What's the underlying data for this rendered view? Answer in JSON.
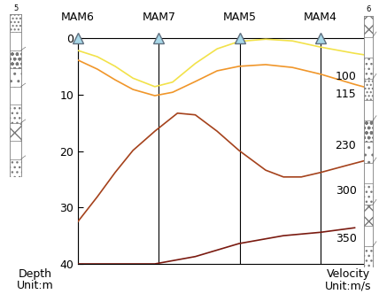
{
  "chart_data": {
    "type": "line",
    "xlim": [
      0,
      3.6
    ],
    "xticks": [
      {
        "value": 0,
        "label": "MAM6"
      },
      {
        "value": 1,
        "label": "MAM7"
      },
      {
        "value": 2,
        "label": "MAM5"
      },
      {
        "value": 3,
        "label": "MAM4"
      }
    ],
    "ylim": [
      40,
      0
    ],
    "yticks": [
      0,
      10,
      20,
      30,
      40
    ],
    "y_label": "Depth",
    "y_unit": "Unit:m",
    "velocity_label": "Velocity",
    "velocity_unit": "Unit:m/s",
    "grid": "x",
    "boreholes": [
      "5",
      "6"
    ],
    "velocity_labels": {
      "values": [
        100,
        115,
        230,
        300,
        350
      ],
      "depths": [
        6.9,
        10,
        19,
        27,
        35.6
      ]
    },
    "series": [
      {
        "color": "#f2e24a",
        "x": [
          0,
          0.24,
          0.46,
          0.68,
          0.95,
          1.17,
          1.45,
          1.72,
          1.99,
          2.32,
          2.65,
          3.0,
          3.42,
          3.6
        ],
        "values": [
          2.2,
          3.3,
          5.0,
          7.1,
          8.6,
          7.8,
          4.5,
          1.9,
          0.6,
          0.2,
          0.5,
          1.6,
          2.7,
          3.1
        ]
      },
      {
        "color": "#f0962a",
        "x": [
          0,
          0.24,
          0.46,
          0.68,
          0.95,
          1.17,
          1.45,
          1.72,
          1.99,
          2.32,
          2.65,
          3.0,
          3.42,
          3.6
        ],
        "values": [
          3.9,
          5.5,
          7.4,
          9.1,
          10.2,
          9.6,
          7.7,
          5.8,
          5.0,
          4.7,
          5.2,
          6.4,
          8.2,
          8.9
        ]
      },
      {
        "color": "#a5421c",
        "x": [
          0,
          0.24,
          0.46,
          0.68,
          0.95,
          1.23,
          1.45,
          1.72,
          1.99,
          2.32,
          2.54,
          2.76,
          3.0,
          3.31,
          3.6
        ],
        "values": [
          32.5,
          28.1,
          23.8,
          19.9,
          16.5,
          13.3,
          13.6,
          16.5,
          19.9,
          23.4,
          24.6,
          24.6,
          23.8,
          22.6,
          21.5
        ]
      },
      {
        "color": "#7a1a10",
        "x": [
          0,
          0.95,
          1.45,
          1.99,
          2.54,
          3.0,
          3.42
        ],
        "values": [
          40,
          40,
          38.7,
          36.4,
          35.0,
          34.4,
          33.6
        ]
      }
    ]
  }
}
